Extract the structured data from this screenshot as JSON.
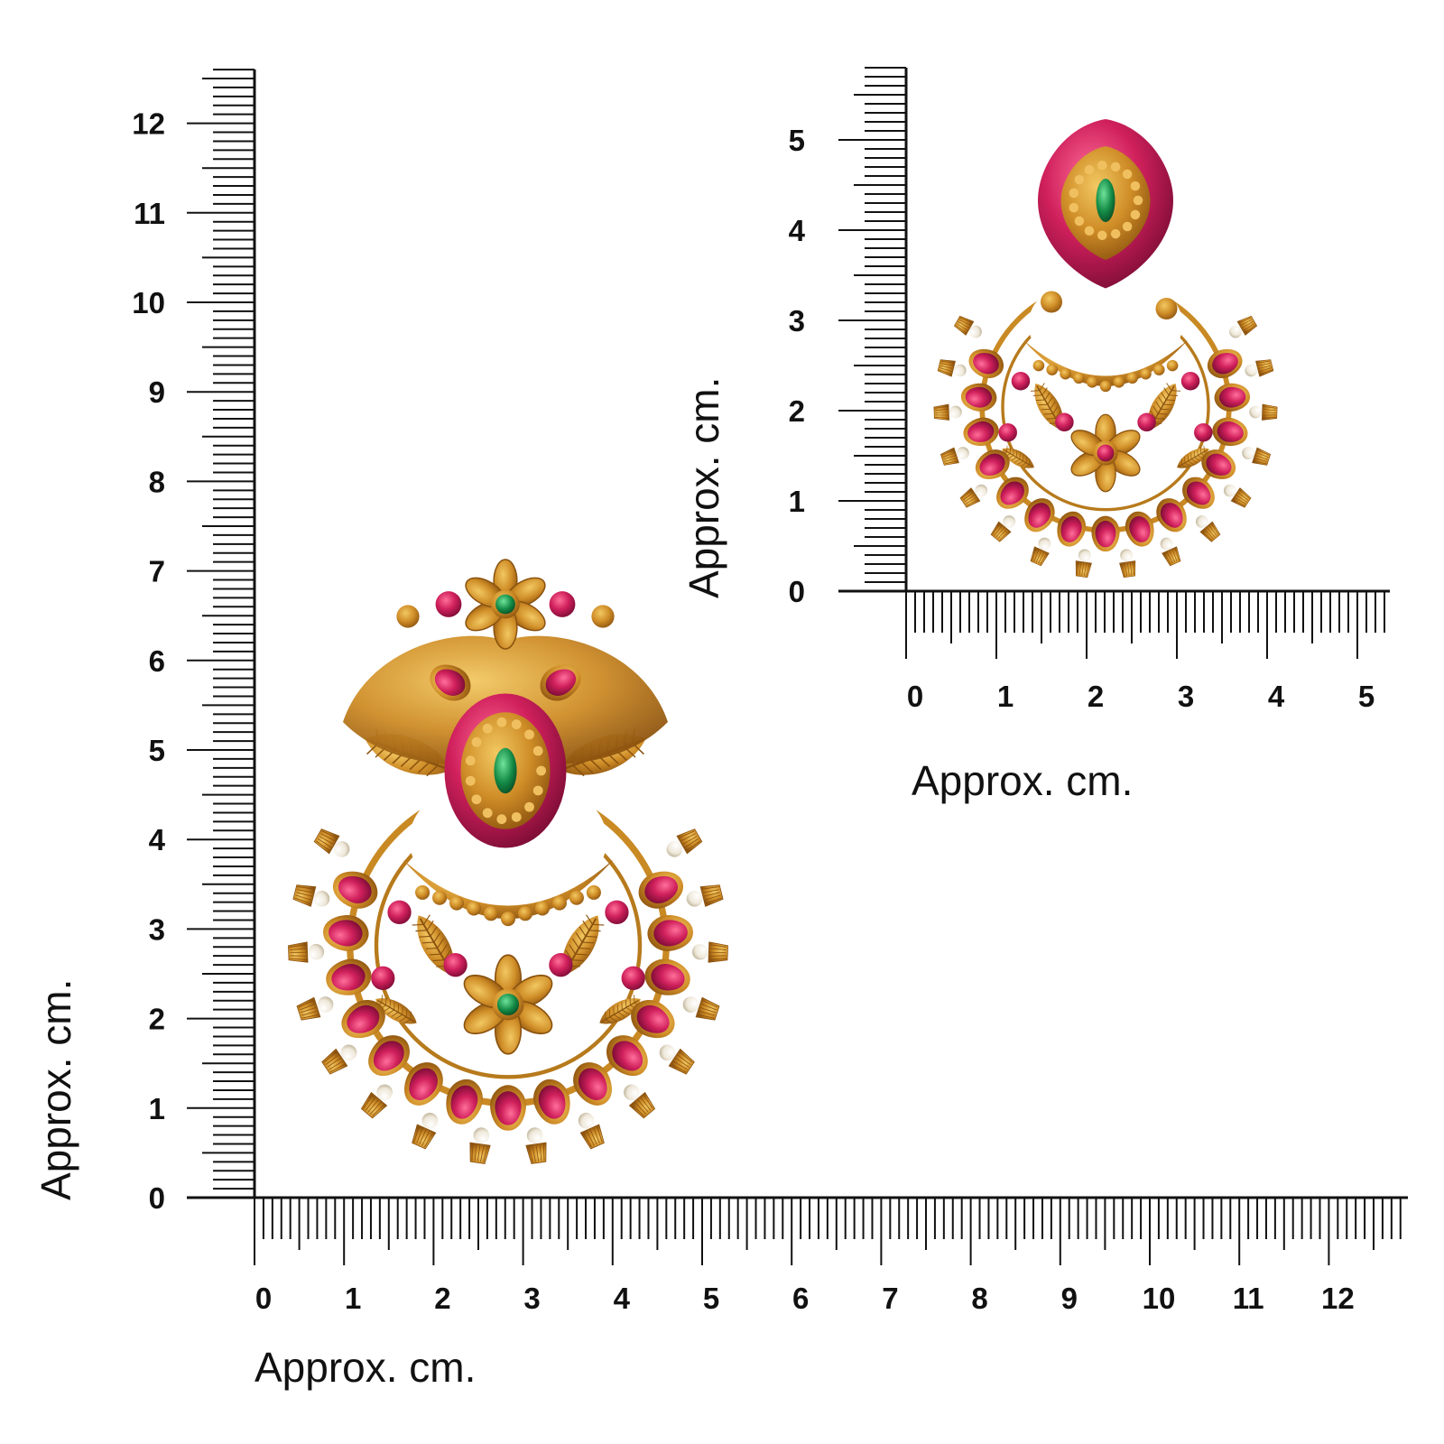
{
  "large_ruler": {
    "x_axis_label": "Approx. cm.",
    "y_axis_label": "Approx. cm.",
    "x_ticks": [
      "0",
      "1",
      "2",
      "3",
      "4",
      "5",
      "6",
      "7",
      "8",
      "9",
      "10",
      "11",
      "12"
    ],
    "y_ticks": [
      "0",
      "1",
      "2",
      "3",
      "4",
      "5",
      "6",
      "7",
      "8",
      "9",
      "10",
      "11",
      "12"
    ]
  },
  "small_ruler": {
    "x_axis_label": "Approx. cm.",
    "y_axis_label": "Approx. cm.",
    "x_ticks": [
      "0",
      "1",
      "2",
      "3",
      "4",
      "5"
    ],
    "y_ticks": [
      "0",
      "1",
      "2",
      "3",
      "4",
      "5"
    ]
  },
  "colors": {
    "gold": "#c98a24",
    "gold_light": "#e8b44a",
    "gold_dark": "#9a5e12",
    "ruby": "#c81e5a",
    "ruby_dark": "#8a0f3a",
    "emerald": "#1a8a4a",
    "pearl": "#f6f1e6",
    "ruler": "#111111"
  },
  "images": {
    "large_product": "chandbali-earring-front-view",
    "small_product": "chandbali-earring-side-view"
  }
}
